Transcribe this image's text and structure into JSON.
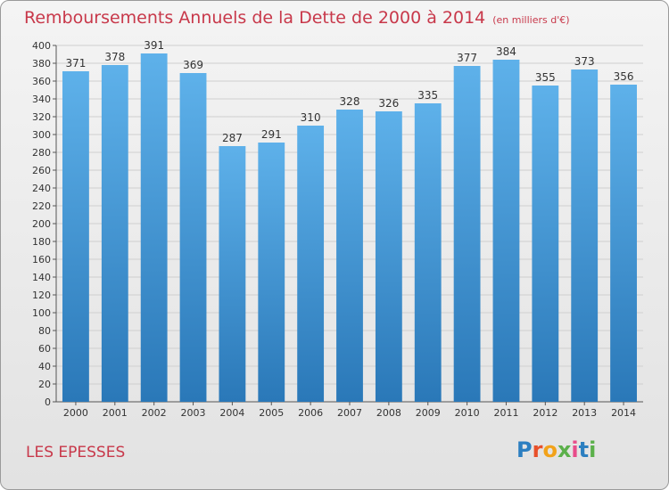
{
  "title": "Remboursements Annuels de la Dette de 2000 à 2014",
  "unit": "(en milliers d'€)",
  "place": "LES EPESSES",
  "logo": {
    "text": "Proxiti",
    "colors": [
      "#2c7fc1",
      "#e8502a",
      "#f2a21a",
      "#5bb04a",
      "#e84c8a",
      "#2c7fc1",
      "#5bb04a"
    ]
  },
  "colors": {
    "title": "#c8384a",
    "bar_top": "#5eb1ea",
    "bar_bottom": "#2a78b8",
    "grid": "#cfcfcf",
    "axis": "#555555"
  },
  "chart_data": {
    "type": "bar",
    "categories": [
      "2000",
      "2001",
      "2002",
      "2003",
      "2004",
      "2005",
      "2006",
      "2007",
      "2008",
      "2009",
      "2010",
      "2011",
      "2012",
      "2013",
      "2014"
    ],
    "values": [
      371,
      378,
      391,
      369,
      287,
      291,
      310,
      328,
      326,
      335,
      377,
      384,
      355,
      373,
      356
    ],
    "ylim": [
      0,
      400
    ],
    "ytick_step": 20,
    "grid": true,
    "xlabel": "",
    "ylabel": ""
  }
}
